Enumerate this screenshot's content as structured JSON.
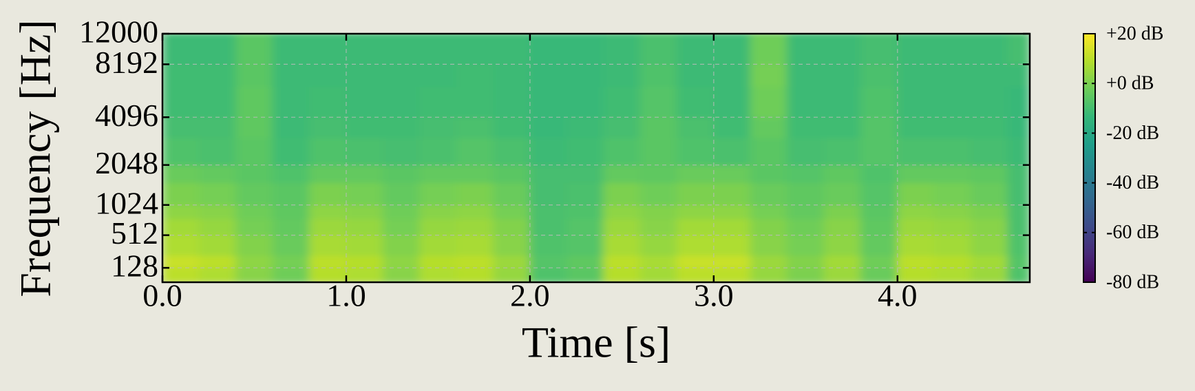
{
  "chart_data": {
    "type": "heatmap",
    "xlabel": "Time [s]",
    "ylabel": "Frequency [Hz]",
    "xlim": [
      0,
      4.72
    ],
    "ylim": [
      0,
      12000
    ],
    "yscale": "mel",
    "grid": true,
    "xticks": [
      {
        "value": 0,
        "label": "0.0"
      },
      {
        "value": 1,
        "label": "1.0"
      },
      {
        "value": 2,
        "label": "2.0"
      },
      {
        "value": 3,
        "label": "3.0"
      },
      {
        "value": 4,
        "label": "4.0"
      }
    ],
    "yticks": [
      128,
      512,
      1024,
      2048,
      4096,
      8192,
      12000
    ],
    "xbins": [
      0,
      0.2,
      0.4,
      0.6,
      0.8,
      1.0,
      1.2,
      1.4,
      1.6,
      1.8,
      2.0,
      2.2,
      2.4,
      2.6,
      2.8,
      3.0,
      3.2,
      3.4,
      3.6,
      3.8,
      4.0,
      4.2,
      4.4,
      4.6,
      4.72
    ],
    "ybins": [
      0,
      128,
      256,
      512,
      768,
      1024,
      1536,
      2048,
      3072,
      4096,
      6144,
      8192,
      12000
    ],
    "values": [
      [
        10,
        8,
        2,
        -2,
        9,
        8,
        2,
        8,
        9,
        4,
        -8,
        -6,
        9,
        6,
        10,
        10,
        4,
        0,
        5,
        -3,
        9,
        8,
        5,
        -8
      ],
      [
        12,
        10,
        3,
        -1,
        10,
        9,
        3,
        9,
        10,
        5,
        -7,
        -5,
        10,
        7,
        12,
        12,
        5,
        1,
        6,
        -2,
        10,
        9,
        6,
        -7
      ],
      [
        8,
        6,
        1,
        -3,
        7,
        6,
        1,
        6,
        7,
        2,
        -8,
        -7,
        7,
        4,
        8,
        8,
        2,
        -1,
        3,
        -4,
        7,
        6,
        3,
        -8
      ],
      [
        6,
        4,
        -1,
        -4,
        5,
        4,
        -1,
        4,
        5,
        1,
        -9,
        -7,
        5,
        2,
        6,
        6,
        1,
        -2,
        2,
        -5,
        5,
        4,
        2,
        -9
      ],
      [
        3,
        2,
        -2,
        -5,
        3,
        2,
        -2,
        2,
        3,
        -1,
        -9,
        -8,
        3,
        1,
        3,
        3,
        -1,
        -4,
        0,
        -6,
        3,
        2,
        0,
        -9
      ],
      [
        0,
        -1,
        -4,
        -6,
        0,
        -1,
        -4,
        -1,
        0,
        -3,
        -10,
        -9,
        0,
        -2,
        0,
        0,
        -3,
        -5,
        -3,
        -7,
        0,
        -1,
        -3,
        -10
      ],
      [
        -3,
        -4,
        -6,
        -8,
        -4,
        -4,
        -6,
        -4,
        -4,
        -6,
        -10,
        -10,
        -4,
        -5,
        -3,
        -3,
        -6,
        -7,
        -5,
        -8,
        -4,
        -4,
        -5,
        -10
      ],
      [
        -8,
        -9,
        -6,
        -11,
        -8,
        -9,
        -10,
        -9,
        -7,
        -9,
        -12,
        -11,
        -8,
        -6,
        -8,
        -9,
        -6,
        -10,
        -9,
        -7,
        -9,
        -9,
        -10,
        -12
      ],
      [
        -10,
        -10,
        -5,
        -12,
        -10,
        -11,
        -11,
        -10,
        -9,
        -11,
        -13,
        -12,
        -10,
        -6,
        -9,
        -11,
        -4,
        -11,
        -11,
        -7,
        -11,
        -11,
        -11,
        -13
      ],
      [
        -11,
        -11,
        -5,
        -12,
        -11,
        -12,
        -12,
        -11,
        -11,
        -12,
        -13,
        -13,
        -11,
        -7,
        -11,
        -12,
        -2,
        -12,
        -12,
        -8,
        -12,
        -12,
        -12,
        -13
      ],
      [
        -11,
        -11,
        -6,
        -12,
        -12,
        -12,
        -12,
        -12,
        -11,
        -12,
        -13,
        -13,
        -12,
        -8,
        -12,
        -12,
        -1,
        -12,
        -12,
        -9,
        -12,
        -12,
        -12,
        -12
      ],
      [
        -12,
        -12,
        -6,
        -12,
        -12,
        -12,
        -12,
        -12,
        -12,
        -12,
        -13,
        -13,
        -12,
        -9,
        -12,
        -12,
        -2,
        -12,
        -12,
        -10,
        -12,
        -12,
        -12,
        -10
      ]
    ],
    "colorbar": {
      "colormap": "viridis",
      "lim": [
        -80,
        20
      ],
      "ticks": [
        {
          "value": 20,
          "label": "+20 dB"
        },
        {
          "value": 0,
          "label": "+0 dB"
        },
        {
          "value": -20,
          "label": "-20 dB"
        },
        {
          "value": -40,
          "label": "-40 dB"
        },
        {
          "value": -60,
          "label": "-60 dB"
        },
        {
          "value": -80,
          "label": "-80 dB"
        }
      ]
    }
  }
}
